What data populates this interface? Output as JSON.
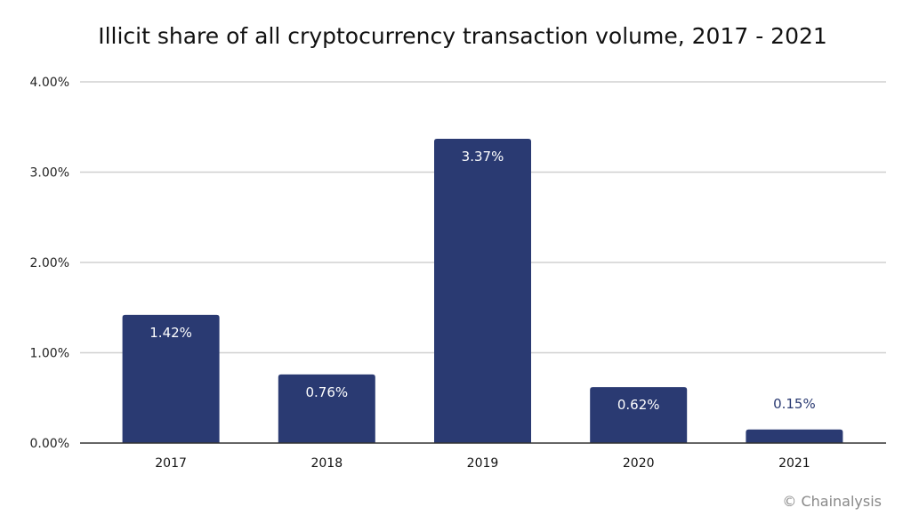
{
  "chart_data": {
    "type": "bar",
    "title": "Illicit share of all cryptocurrency transaction volume, 2017 - 2021",
    "categories": [
      "2017",
      "2018",
      "2019",
      "2020",
      "2021"
    ],
    "values": [
      1.42,
      0.76,
      3.37,
      0.62,
      0.15
    ],
    "data_labels": [
      "1.42%",
      "0.76%",
      "3.37%",
      "0.62%",
      "0.15%"
    ],
    "xlabel": "",
    "ylabel": "",
    "ylim": [
      0,
      4
    ],
    "yticks": [
      0,
      1,
      2,
      3,
      4
    ],
    "ytick_labels": [
      "0.00%",
      "1.00%",
      "2.00%",
      "3.00%",
      "4.00%"
    ],
    "grid": true,
    "bar_color": "#2a3a72",
    "label_inside_color": "#ffffff",
    "label_outside_color": "#2a3a72"
  },
  "credit": "© Chainalysis"
}
